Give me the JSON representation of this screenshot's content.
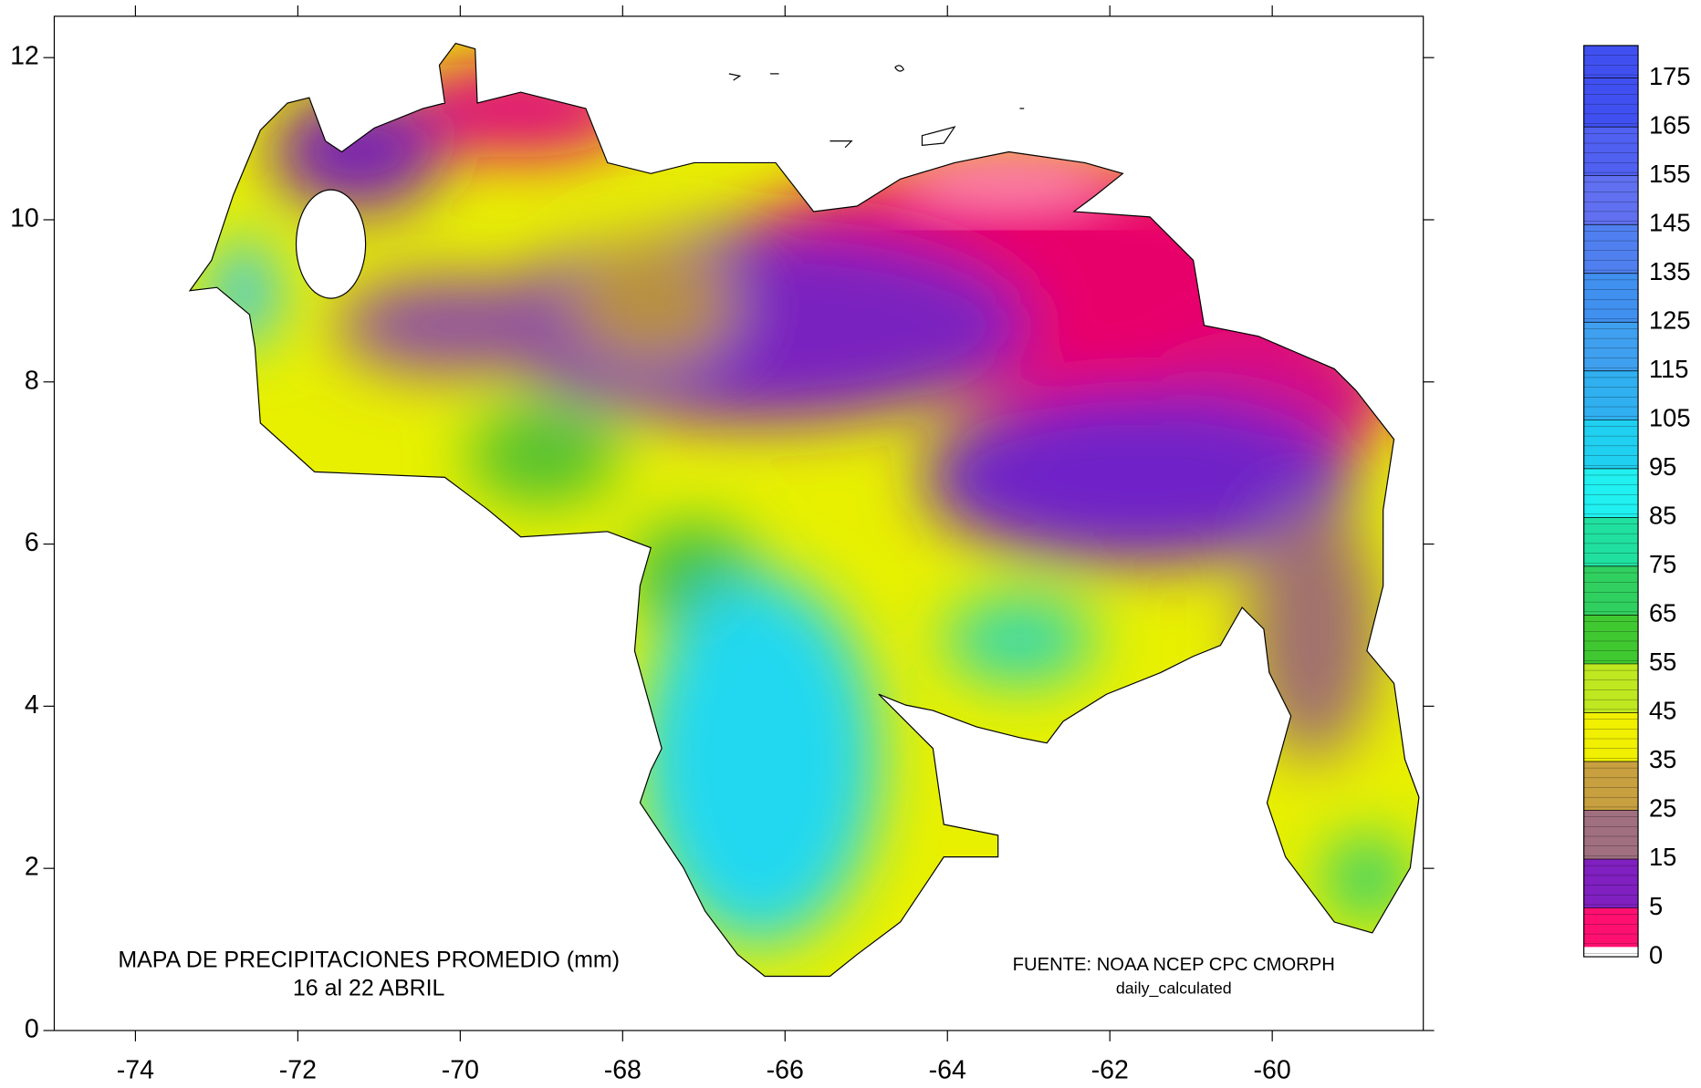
{
  "map": {
    "title": "MAPA DE PRECIPITACIONES PROMEDIO (mm)",
    "subtitle": "16 al 22 ABRIL",
    "source": "FUENTE: NOAA NCEP CPC CMORPH",
    "source_note": "daily_calculated",
    "xlim": [
      -75,
      -58.14
    ],
    "ylim": [
      0,
      12.51
    ],
    "xticks": [
      -74,
      -72,
      -70,
      -68,
      -66,
      -64,
      -62,
      -60
    ],
    "yticks": [
      0,
      2,
      4,
      6,
      8,
      10,
      12
    ],
    "colorbar": {
      "ticks": [
        0,
        5,
        15,
        25,
        35,
        45,
        55,
        65,
        75,
        85,
        95,
        105,
        115,
        125,
        135,
        145,
        155,
        165,
        175
      ],
      "colors": [
        "#ffffff",
        "#ff1070",
        "#8020c0",
        "#a07080",
        "#c8a040",
        "#f0f000",
        "#c0e820",
        "#40c830",
        "#30d060",
        "#20e0a0",
        "#20f0f0",
        "#20d0f0",
        "#30b0f0",
        "#40a0f0",
        "#4090f0",
        "#5080f0",
        "#6070f0",
        "#5060f0",
        "#4050f0"
      ]
    }
  }
}
